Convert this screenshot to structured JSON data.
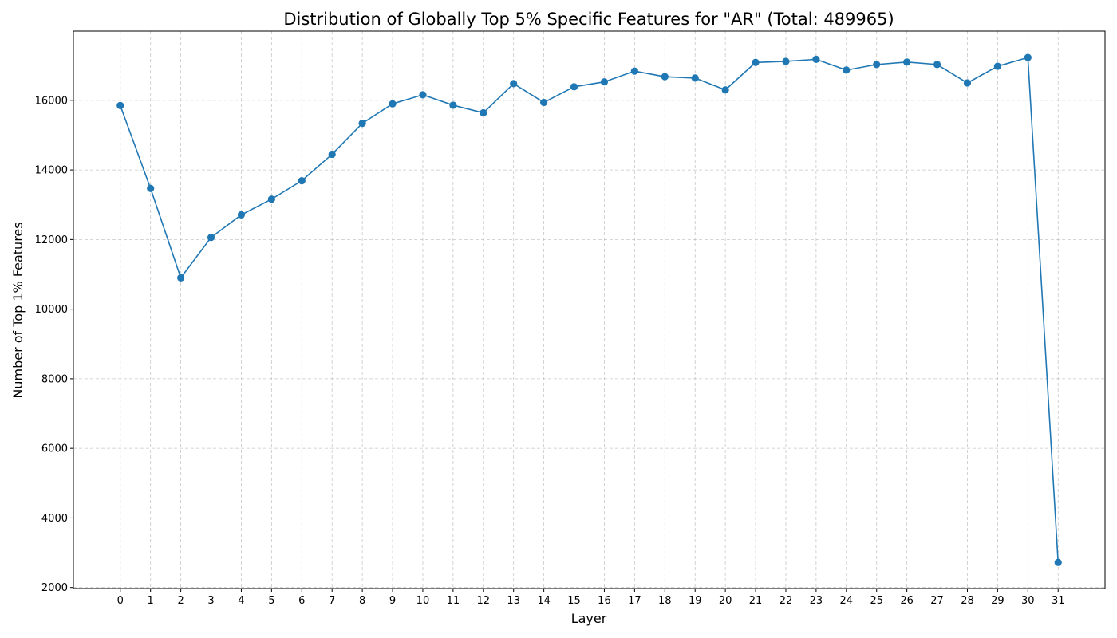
{
  "chart_data": {
    "type": "line",
    "title": "Distribution of Globally Top 5% Specific Features for \"AR\" (Total: 489965)",
    "xlabel": "Layer",
    "ylabel": "Number of Top 1% Features",
    "x": [
      0,
      1,
      2,
      3,
      4,
      5,
      6,
      7,
      8,
      9,
      10,
      11,
      12,
      13,
      14,
      15,
      16,
      17,
      18,
      19,
      20,
      21,
      22,
      23,
      24,
      25,
      26,
      27,
      28,
      29,
      30,
      31
    ],
    "x_tick_labels": [
      "0",
      "1",
      "2",
      "3",
      "4",
      "5",
      "6",
      "7",
      "8",
      "9",
      "10",
      "11",
      "12",
      "13",
      "14",
      "15",
      "16",
      "17",
      "18",
      "19",
      "20",
      "21",
      "22",
      "23",
      "24",
      "25",
      "26",
      "27",
      "28",
      "29",
      "30",
      "31"
    ],
    "y_ticks": [
      2000,
      4000,
      6000,
      8000,
      10000,
      12000,
      14000,
      16000
    ],
    "y_tick_labels": [
      "2000",
      "4000",
      "6000",
      "8000",
      "10000",
      "12000",
      "14000",
      "16000"
    ],
    "xlim": [
      -1.55,
      32.55
    ],
    "ylim": [
      1970,
      17990
    ],
    "grid": true,
    "series": [
      {
        "color": "#1f77b4",
        "marker": "circle",
        "values": [
          15850,
          13470,
          10900,
          12060,
          12710,
          13160,
          13690,
          14450,
          15340,
          15900,
          16160,
          15860,
          15640,
          16480,
          15940,
          16390,
          16530,
          16840,
          16680,
          16640,
          16300,
          17090,
          17120,
          17180,
          16870,
          17030,
          17100,
          17030,
          16500,
          16980,
          17230,
          2720
        ]
      }
    ]
  }
}
